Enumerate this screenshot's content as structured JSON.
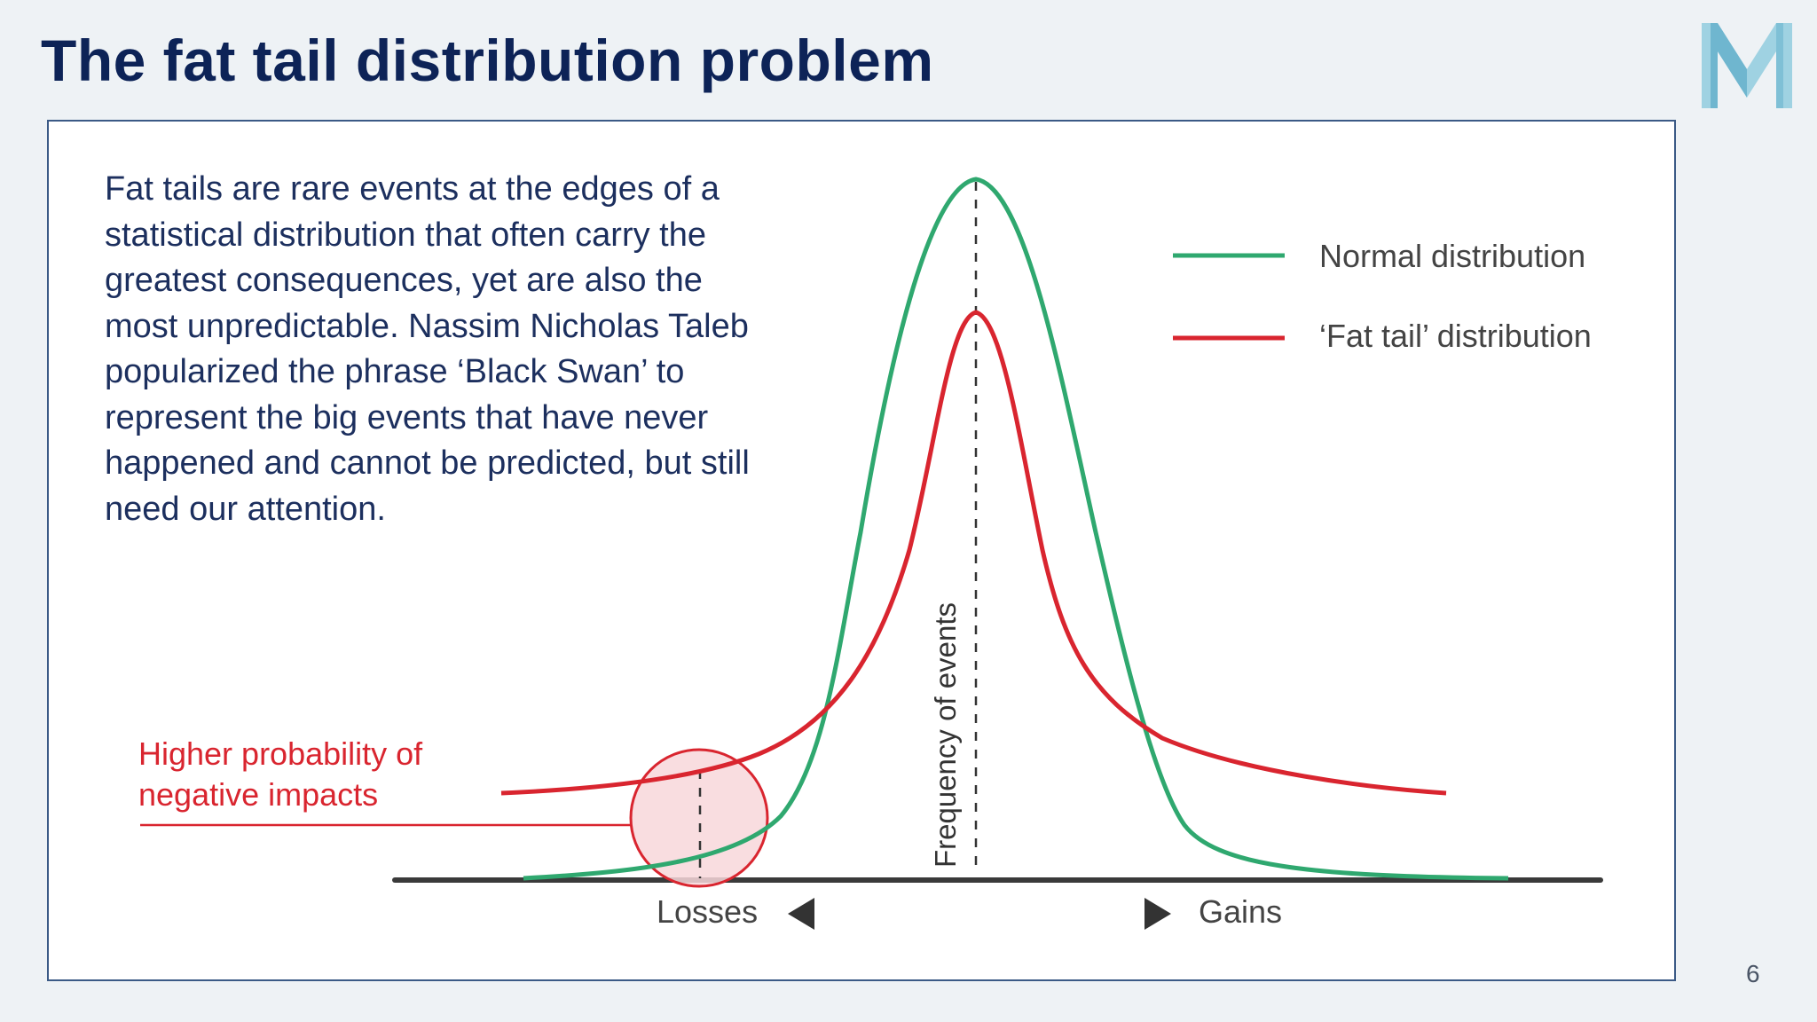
{
  "slide": {
    "title": "The fat tail distribution problem",
    "page_number": "6",
    "body_text": "Fat tails are rare events at the edges of a statistical distribution that often carry the greatest consequences, yet are also the most unpredictable. Nassim Nicholas Taleb popularized the phrase ‘Black Swan’ to represent the big events that have never happened and cannot be predicted, but still need our attention."
  },
  "diagram": {
    "legend": [
      {
        "label": "Normal distribution",
        "color": "#2fa86f"
      },
      {
        "label": "‘Fat tail’ distribution",
        "color": "#d9252f"
      }
    ],
    "axis_label_vertical": "Frequency of events",
    "axis_left_label": "Losses",
    "axis_right_label": "Gains",
    "callout_line1": "Higher probability of",
    "callout_line2": "negative impacts",
    "colors": {
      "title": "#0d2357",
      "body": "#1c2f5e",
      "normal": "#2fa86f",
      "fat_tail": "#d9252f",
      "axis": "#3a3a3a",
      "panel_border": "#3b5a86"
    }
  },
  "logo": {
    "icon": "m-letter-logo-icon"
  }
}
